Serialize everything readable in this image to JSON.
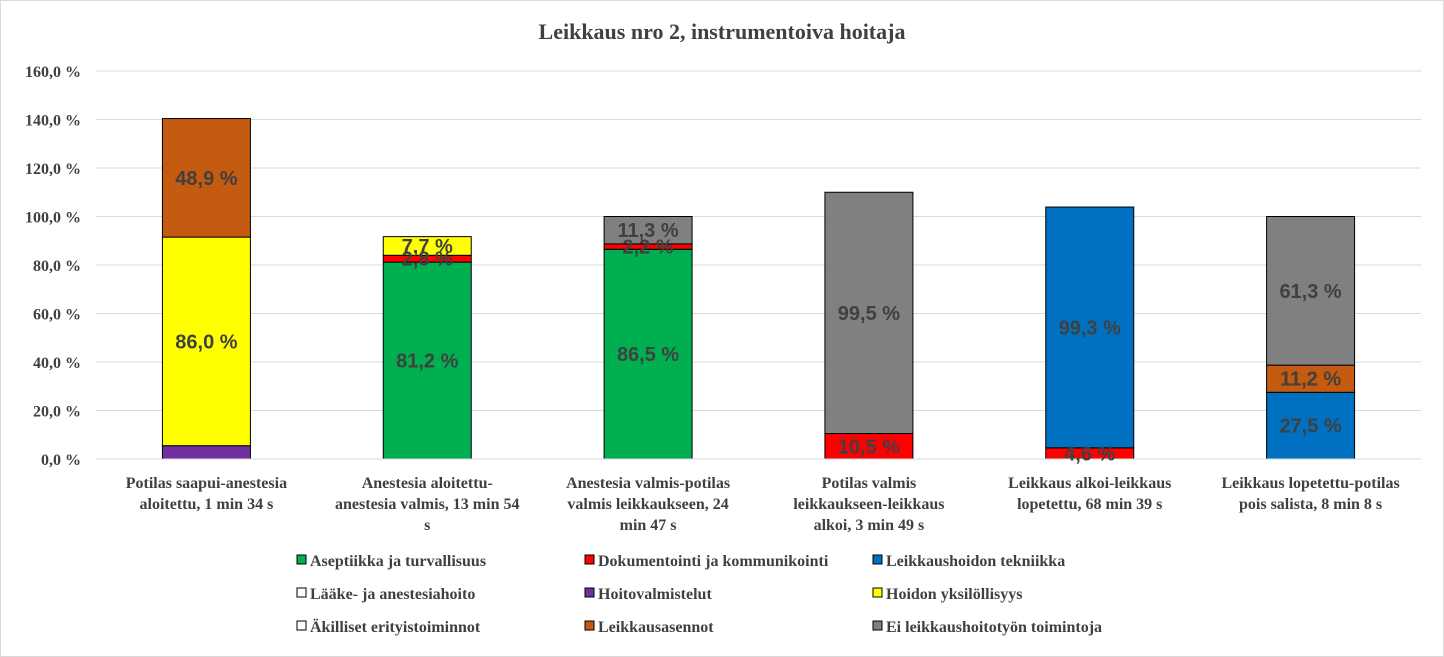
{
  "chart_data": {
    "type": "bar",
    "stacked": true,
    "title": "Leikkaus nro 2, instrumentoiva hoitaja",
    "ylim": [
      0,
      160
    ],
    "yticks": [
      "0,0 %",
      "20,0 %",
      "40,0 %",
      "60,0 %",
      "80,0 %",
      "100,0 %",
      "120,0 %",
      "140,0 %",
      "160,0 %"
    ],
    "grid": true,
    "legend_position": "bottom",
    "categories": [
      [
        "Potilas saapui-anestesia",
        "aloitettu, 1 min 34 s"
      ],
      [
        "Anestesia aloitettu-",
        "anestesia valmis, 13 min 54",
        "s"
      ],
      [
        "Anestesia valmis-potilas",
        "valmis leikkaukseen, 24",
        "min 47 s"
      ],
      [
        "Potilas valmis",
        "leikkaukseen-leikkaus",
        "alkoi, 3 min 49 s"
      ],
      [
        "Leikkaus alkoi-leikkaus",
        "lopetettu, 68 min 39 s"
      ],
      [
        "Leikkaus lopetettu-potilas",
        "pois salista, 8 min 8 s"
      ]
    ],
    "series": [
      {
        "name": "Aseptiikka ja turvallisuus",
        "color": "#00b050",
        "values": [
          0,
          81.2,
          86.5,
          0,
          0,
          0
        ],
        "labels": [
          "",
          "81,2 %",
          "86,5 %",
          "",
          "",
          ""
        ]
      },
      {
        "name": "Dokumentointi ja kommunikointi",
        "color": "#ff0000",
        "values": [
          0,
          2.8,
          2.2,
          10.5,
          4.6,
          0
        ],
        "labels": [
          "",
          "2,8 %",
          "2,2 %",
          "10,5 %",
          "4,6 %",
          ""
        ]
      },
      {
        "name": "Leikkaushoidon tekniikka",
        "color": "#0070c0",
        "values": [
          0,
          0,
          0,
          0,
          99.3,
          27.5
        ],
        "labels": [
          "",
          "",
          "",
          "",
          "99,3 %",
          "27,5 %"
        ]
      },
      {
        "name": "Lääke- ja anestesiahoito",
        "color": "#ffffff",
        "values": [
          0,
          0,
          0,
          0,
          0,
          0
        ],
        "labels": [
          "",
          "",
          "",
          "",
          "",
          ""
        ]
      },
      {
        "name": "Hoitovalmistelut",
        "color": "#7030a0",
        "values": [
          5.5,
          0,
          0,
          0,
          0,
          0
        ],
        "labels": [
          "",
          "",
          "",
          "",
          "",
          ""
        ]
      },
      {
        "name": "Hoidon yksilöllisyys",
        "color": "#ffff00",
        "values": [
          86.0,
          7.7,
          0,
          0,
          0,
          0
        ],
        "labels": [
          "86,0 %",
          "7,7 %",
          "",
          "",
          "",
          ""
        ]
      },
      {
        "name": "Äkilliset erityistoiminnot",
        "color": "#ffffff",
        "values": [
          0,
          0,
          0,
          0,
          0,
          0
        ],
        "labels": [
          "",
          "",
          "",
          "",
          "",
          ""
        ]
      },
      {
        "name": "Leikkausasennot",
        "color": "#c55a11",
        "values": [
          48.9,
          0,
          0,
          0,
          0,
          11.2
        ],
        "labels": [
          "48,9 %",
          "",
          "",
          "",
          "",
          "11,2 %"
        ]
      },
      {
        "name": "Ei leikkaushoitotyön toimintoja",
        "color": "#808080",
        "values": [
          0,
          0,
          11.3,
          99.5,
          0,
          61.3
        ],
        "labels": [
          "",
          "",
          "11,3 %",
          "99,5 %",
          "",
          "61,3 %"
        ]
      }
    ]
  }
}
